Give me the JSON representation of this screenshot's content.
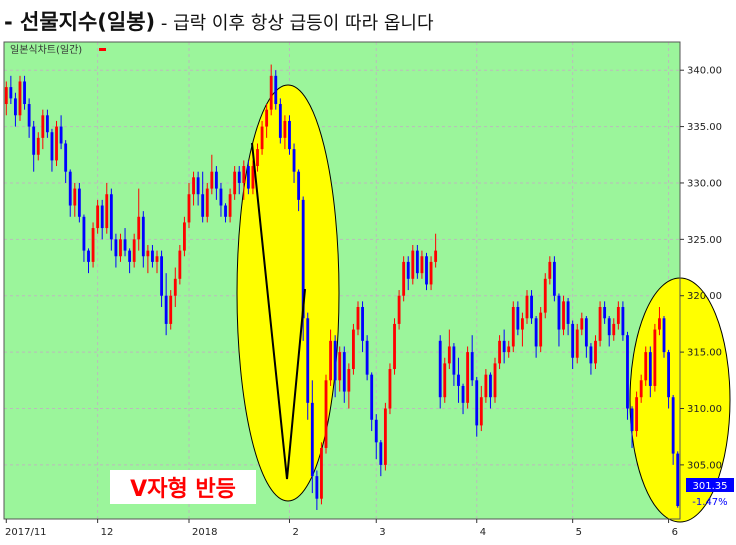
{
  "headline": {
    "prefix": "- ",
    "title": "선물지수(일봉)",
    "subtitle": " - 급락 이후 항상 급등이 따라 옵니다"
  },
  "colors": {
    "plot_bg": "#9bf59b",
    "up": "#ff0000",
    "down": "#0000ff",
    "ellipse": "#ffff00",
    "price_badge": "#0000ff"
  },
  "chart_data": {
    "type": "candlestick",
    "legend": "일본식차트(일간)",
    "annotation": "V자형 반등",
    "ylim": [
      300.2,
      342.5
    ],
    "yticks": [
      305,
      310,
      315,
      320,
      325,
      330,
      335,
      340
    ],
    "ytick_labels": [
      "305.00",
      "310.00",
      "315.00",
      "320.00",
      "325.00",
      "330.00",
      "335.00",
      "340.00"
    ],
    "xtick_labels": [
      {
        "label": "2017/11",
        "index": 0
      },
      {
        "label": "12",
        "index": 20
      },
      {
        "label": "2018",
        "index": 40
      },
      {
        "label": "2",
        "index": 62
      },
      {
        "label": "3",
        "index": 81
      },
      {
        "label": "4",
        "index": 103
      },
      {
        "label": "5",
        "index": 124
      },
      {
        "label": "6",
        "index": 145
      }
    ],
    "last_price": "301.35",
    "last_change": "-1.47%",
    "grid": true,
    "candles": [
      [
        337.0,
        339.0,
        336.0,
        338.5
      ],
      [
        338.5,
        339.5,
        337.0,
        337.5
      ],
      [
        337.5,
        338.0,
        335.0,
        336.0
      ],
      [
        336.0,
        339.5,
        335.5,
        339.0
      ],
      [
        339.0,
        339.5,
        336.5,
        337.0
      ],
      [
        337.0,
        337.5,
        334.0,
        335.0
      ],
      [
        335.0,
        335.5,
        331.0,
        332.5
      ],
      [
        332.5,
        334.5,
        332.0,
        334.0
      ],
      [
        334.0,
        336.5,
        333.0,
        336.0
      ],
      [
        336.0,
        336.5,
        334.0,
        334.5
      ],
      [
        334.5,
        334.8,
        331.0,
        332.0
      ],
      [
        332.0,
        335.5,
        331.5,
        335.0
      ],
      [
        335.0,
        336.0,
        333.0,
        333.5
      ],
      [
        333.5,
        333.8,
        330.0,
        331.0
      ],
      [
        331.0,
        331.2,
        327.0,
        328.0
      ],
      [
        328.0,
        330.0,
        327.0,
        329.5
      ],
      [
        329.5,
        330.0,
        326.5,
        327.0
      ],
      [
        327.0,
        327.2,
        323.0,
        324.0
      ],
      [
        324.0,
        324.2,
        322.0,
        323.0
      ],
      [
        323.0,
        326.5,
        322.5,
        326.0
      ],
      [
        326.0,
        328.5,
        325.5,
        328.0
      ],
      [
        328.0,
        328.5,
        325.0,
        326.0
      ],
      [
        326.0,
        330.0,
        325.5,
        329.0
      ],
      [
        329.0,
        329.5,
        324.0,
        325.0
      ],
      [
        325.0,
        325.5,
        322.5,
        323.5
      ],
      [
        323.5,
        325.5,
        323.0,
        325.0
      ],
      [
        325.0,
        326.0,
        323.5,
        324.0
      ],
      [
        324.0,
        324.2,
        322.0,
        323.0
      ],
      [
        323.0,
        325.5,
        322.5,
        325.0
      ],
      [
        325.0,
        329.5,
        324.0,
        327.0
      ],
      [
        327.0,
        327.5,
        322.5,
        323.5
      ],
      [
        323.5,
        324.5,
        322.0,
        324.0
      ],
      [
        324.0,
        324.5,
        322.5,
        323.0
      ],
      [
        323.0,
        324.0,
        322.0,
        323.5
      ],
      [
        323.5,
        324.0,
        319.0,
        320.0
      ],
      [
        320.0,
        322.0,
        316.5,
        317.5
      ],
      [
        317.5,
        320.5,
        317.0,
        320.0
      ],
      [
        320.0,
        322.5,
        319.0,
        321.5
      ],
      [
        321.5,
        324.5,
        321.0,
        324.0
      ],
      [
        324.0,
        327.0,
        323.5,
        326.5
      ],
      [
        326.5,
        330.0,
        326.0,
        329.0
      ],
      [
        329.0,
        331.0,
        328.0,
        330.5
      ],
      [
        330.5,
        331.0,
        328.0,
        329.0
      ],
      [
        329.0,
        331.0,
        326.5,
        327.0
      ],
      [
        327.0,
        330.0,
        326.5,
        329.5
      ],
      [
        329.5,
        332.5,
        329.0,
        331.0
      ],
      [
        331.0,
        331.5,
        328.5,
        329.5
      ],
      [
        329.5,
        330.0,
        327.0,
        328.0
      ],
      [
        328.0,
        328.2,
        326.5,
        327.0
      ],
      [
        327.0,
        329.5,
        326.5,
        329.0
      ],
      [
        329.0,
        331.5,
        328.5,
        331.0
      ],
      [
        331.0,
        331.5,
        329.0,
        330.0
      ],
      [
        330.0,
        332.0,
        328.5,
        331.5
      ],
      [
        331.5,
        332.0,
        329.0,
        329.5
      ],
      [
        329.5,
        332.0,
        329.0,
        331.5
      ],
      [
        331.5,
        333.5,
        331.0,
        333.0
      ],
      [
        333.0,
        335.5,
        332.5,
        335.0
      ],
      [
        335.0,
        337.0,
        334.0,
        336.5
      ],
      [
        336.5,
        340.5,
        336.0,
        339.5
      ],
      [
        339.5,
        340.0,
        336.5,
        337.0
      ],
      [
        337.0,
        337.5,
        333.5,
        334.0
      ],
      [
        334.0,
        336.0,
        333.0,
        335.5
      ],
      [
        335.5,
        336.0,
        332.5,
        333.0
      ],
      [
        333.0,
        333.5,
        330.0,
        331.0
      ],
      [
        331.0,
        331.2,
        327.5,
        328.5
      ],
      [
        328.5,
        328.8,
        316.0,
        318.0
      ],
      [
        318.0,
        318.5,
        309.0,
        310.5
      ],
      [
        310.5,
        312.5,
        302.5,
        304.0
      ],
      [
        304.0,
        304.5,
        301.0,
        302.0
      ],
      [
        302.0,
        307.0,
        301.5,
        306.5
      ],
      [
        306.5,
        313.0,
        306.0,
        312.5
      ],
      [
        312.5,
        317.0,
        312.0,
        316.0
      ],
      [
        316.0,
        316.5,
        311.0,
        312.5
      ],
      [
        312.5,
        315.5,
        311.5,
        315.0
      ],
      [
        315.0,
        315.5,
        310.5,
        311.5
      ],
      [
        311.5,
        314.0,
        310.0,
        313.5
      ],
      [
        313.5,
        317.5,
        313.0,
        317.0
      ],
      [
        317.0,
        319.5,
        316.5,
        319.0
      ],
      [
        319.0,
        319.5,
        315.0,
        316.0
      ],
      [
        316.0,
        316.5,
        312.5,
        313.0
      ],
      [
        313.0,
        313.2,
        308.0,
        309.0
      ],
      [
        309.0,
        309.5,
        305.5,
        307.0
      ],
      [
        307.0,
        307.2,
        304.0,
        305.0
      ],
      [
        305.0,
        310.5,
        304.5,
        310.0
      ],
      [
        310.0,
        314.0,
        309.5,
        313.5
      ],
      [
        313.5,
        318.0,
        313.0,
        317.5
      ],
      [
        317.5,
        320.5,
        317.0,
        320.0
      ],
      [
        320.0,
        323.5,
        319.5,
        323.0
      ],
      [
        323.0,
        323.5,
        320.5,
        321.5
      ],
      [
        321.5,
        324.5,
        321.0,
        324.0
      ],
      [
        324.0,
        324.5,
        321.5,
        322.0
      ],
      [
        322.0,
        324.0,
        321.5,
        323.5
      ],
      [
        323.5,
        323.8,
        320.5,
        321.0
      ],
      [
        321.0,
        323.5,
        320.5,
        323.0
      ],
      [
        323.0,
        325.5,
        322.5,
        324.0
      ],
      [
        316.0,
        316.5,
        310.0,
        311.0
      ],
      [
        311.0,
        314.5,
        310.5,
        314.0
      ],
      [
        314.0,
        317.0,
        313.5,
        315.5
      ],
      [
        315.5,
        315.8,
        312.0,
        313.0
      ],
      [
        313.0,
        314.5,
        310.5,
        312.0
      ],
      [
        312.0,
        312.2,
        309.5,
        310.5
      ],
      [
        310.5,
        315.5,
        310.0,
        315.0
      ],
      [
        315.0,
        316.5,
        312.0,
        312.5
      ],
      [
        312.5,
        312.8,
        307.5,
        308.5
      ],
      [
        308.5,
        312.0,
        308.0,
        311.0
      ],
      [
        311.0,
        313.5,
        310.5,
        313.0
      ],
      [
        313.0,
        313.2,
        310.0,
        311.0
      ],
      [
        311.0,
        314.5,
        310.5,
        314.0
      ],
      [
        314.0,
        316.5,
        313.5,
        316.0
      ],
      [
        316.0,
        317.0,
        314.0,
        315.0
      ],
      [
        315.0,
        316.0,
        314.5,
        315.5
      ],
      [
        315.5,
        319.5,
        315.0,
        319.0
      ],
      [
        319.0,
        319.5,
        316.5,
        317.0
      ],
      [
        317.0,
        318.5,
        315.5,
        318.0
      ],
      [
        318.0,
        320.5,
        317.5,
        320.0
      ],
      [
        320.0,
        320.5,
        317.5,
        318.0
      ],
      [
        318.0,
        318.2,
        314.5,
        315.5
      ],
      [
        315.5,
        319.0,
        315.0,
        318.5
      ],
      [
        318.5,
        322.0,
        318.0,
        321.5
      ],
      [
        321.5,
        323.5,
        321.0,
        323.0
      ],
      [
        323.0,
        323.5,
        319.5,
        320.0
      ],
      [
        320.0,
        320.2,
        315.5,
        317.0
      ],
      [
        317.0,
        320.0,
        316.5,
        319.5
      ],
      [
        319.5,
        319.8,
        316.5,
        317.5
      ],
      [
        317.5,
        317.8,
        313.5,
        314.5
      ],
      [
        314.5,
        317.5,
        314.0,
        317.0
      ],
      [
        317.0,
        318.5,
        316.5,
        318.0
      ],
      [
        318.0,
        318.2,
        314.5,
        315.5
      ],
      [
        315.5,
        315.8,
        313.0,
        314.0
      ],
      [
        314.0,
        316.5,
        313.5,
        316.0
      ],
      [
        316.0,
        319.5,
        315.5,
        319.0
      ],
      [
        319.0,
        319.5,
        317.5,
        318.0
      ],
      [
        318.0,
        318.2,
        315.5,
        316.5
      ],
      [
        316.5,
        318.0,
        316.0,
        317.5
      ],
      [
        317.5,
        319.5,
        317.0,
        319.0
      ],
      [
        319.0,
        319.5,
        316.0,
        316.5
      ],
      [
        316.5,
        316.8,
        309.0,
        310.0
      ],
      [
        310.0,
        310.2,
        306.5,
        308.0
      ],
      [
        308.0,
        311.5,
        307.5,
        311.0
      ],
      [
        311.0,
        313.0,
        310.5,
        312.5
      ],
      [
        312.5,
        315.5,
        312.0,
        315.0
      ],
      [
        315.0,
        315.5,
        311.0,
        312.0
      ],
      [
        312.0,
        317.5,
        311.5,
        317.0
      ],
      [
        317.0,
        319.0,
        316.5,
        318.0
      ],
      [
        318.0,
        318.2,
        314.5,
        315.0
      ],
      [
        315.0,
        315.2,
        310.0,
        311.0
      ],
      [
        311.0,
        311.2,
        305.0,
        306.0
      ],
      [
        306.0,
        306.2,
        301.2,
        301.35
      ]
    ]
  }
}
